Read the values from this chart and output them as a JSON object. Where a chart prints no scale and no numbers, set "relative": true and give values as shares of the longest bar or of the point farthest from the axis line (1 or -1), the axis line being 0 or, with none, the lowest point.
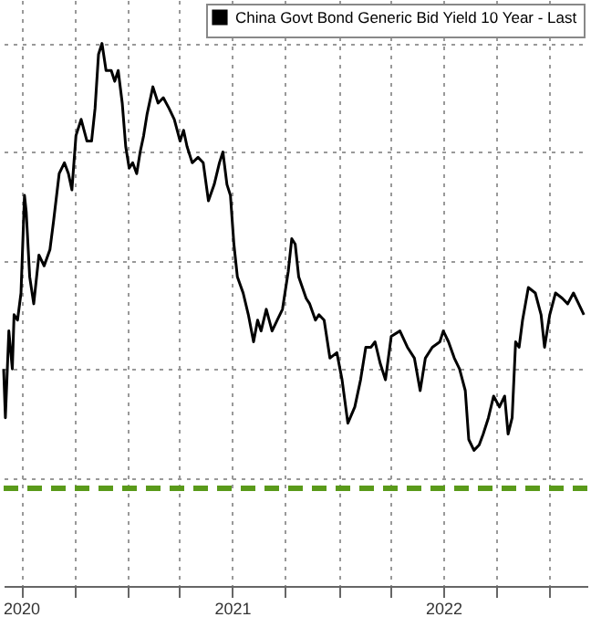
{
  "chart_data": {
    "type": "line",
    "relative": true,
    "xlim": [
      "2020-06-01",
      "2023-03-07"
    ],
    "xticks": [
      {
        "value": "2020-07-01",
        "label": "2020"
      },
      {
        "value": "2020-10-01",
        "label": null
      },
      {
        "value": "2021-01-01",
        "label": null
      },
      {
        "value": "2021-04-01",
        "label": null
      },
      {
        "value": "2021-07-01",
        "label": "2021"
      },
      {
        "value": "2021-10-01",
        "label": null
      },
      {
        "value": "2022-01-01",
        "label": null
      },
      {
        "value": "2022-04-01",
        "label": null
      },
      {
        "value": "2022-07-01",
        "label": "2022"
      },
      {
        "value": "2022-10-01",
        "label": null
      },
      {
        "value": "2023-01-01",
        "label": null
      }
    ],
    "x": [
      "2020-06-01",
      "2020-06-04",
      "2020-06-10",
      "2020-06-16",
      "2020-06-19",
      "2020-06-25",
      "2020-07-01",
      "2020-07-07",
      "2020-07-10",
      "2020-07-16",
      "2020-07-23",
      "2020-08-01",
      "2020-08-10",
      "2020-08-20",
      "2020-08-26",
      "2020-09-05",
      "2020-09-14",
      "2020-09-21",
      "2020-09-27",
      "2020-10-04",
      "2020-10-13",
      "2020-10-23",
      "2020-10-31",
      "2020-11-06",
      "2020-11-12",
      "2020-11-18",
      "2020-11-25",
      "2020-12-04",
      "2020-12-10",
      "2020-12-16",
      "2020-12-23",
      "2020-12-29",
      "2021-01-04",
      "2021-01-10",
      "2021-01-17",
      "2021-01-23",
      "2021-01-29",
      "2021-02-04",
      "2021-02-14",
      "2021-02-23",
      "2021-03-04",
      "2021-03-14",
      "2021-03-23",
      "2021-04-02",
      "2021-04-08",
      "2021-04-14",
      "2021-04-23",
      "2021-05-03",
      "2021-05-12",
      "2021-05-21",
      "2021-05-31",
      "2021-06-09",
      "2021-06-15",
      "2021-06-22",
      "2021-06-28",
      "2021-07-04",
      "2021-07-10",
      "2021-07-20",
      "2021-07-29",
      "2021-08-07",
      "2021-08-14",
      "2021-08-20",
      "2021-08-29",
      "2021-09-08",
      "2021-09-17",
      "2021-09-26",
      "2021-10-06",
      "2021-10-12",
      "2021-10-18",
      "2021-10-24",
      "2021-11-06",
      "2021-11-12",
      "2021-11-22",
      "2021-11-28",
      "2021-12-07",
      "2021-12-17",
      "2021-12-29",
      "2022-01-07",
      "2022-01-17",
      "2022-01-29",
      "2022-02-08",
      "2022-02-17",
      "2022-02-26",
      "2022-03-05",
      "2022-03-14",
      "2022-03-23",
      "2022-04-02",
      "2022-04-17",
      "2022-04-30",
      "2022-05-12",
      "2022-05-22",
      "2022-05-31",
      "2022-06-12",
      "2022-06-25",
      "2022-07-01",
      "2022-07-10",
      "2022-07-20",
      "2022-07-29",
      "2022-08-08",
      "2022-08-14",
      "2022-08-23",
      "2022-09-01",
      "2022-09-08",
      "2022-09-17",
      "2022-09-26",
      "2022-10-06",
      "2022-10-15",
      "2022-10-21",
      "2022-10-28",
      "2022-11-03",
      "2022-11-09",
      "2022-11-15",
      "2022-11-25",
      "2022-12-07",
      "2022-12-17",
      "2022-12-23",
      "2023-01-01",
      "2023-01-11",
      "2023-01-23",
      "2023-02-01",
      "2023-02-11",
      "2023-02-20",
      "2023-03-01"
    ],
    "series": [
      {
        "name": "China Govt Bond Generic Bid Yield 10 Year - Last",
        "color": "#000000",
        "values": [
          0.4,
          0.31,
          0.47,
          0.4,
          0.5,
          0.49,
          0.54,
          0.72,
          0.69,
          0.57,
          0.52,
          0.61,
          0.59,
          0.62,
          0.67,
          0.76,
          0.78,
          0.76,
          0.73,
          0.83,
          0.86,
          0.82,
          0.82,
          0.88,
          0.98,
          1.0,
          0.95,
          0.95,
          0.93,
          0.95,
          0.89,
          0.81,
          0.77,
          0.78,
          0.76,
          0.8,
          0.83,
          0.87,
          0.92,
          0.89,
          0.9,
          0.88,
          0.86,
          0.82,
          0.84,
          0.81,
          0.78,
          0.79,
          0.78,
          0.71,
          0.74,
          0.78,
          0.8,
          0.74,
          0.72,
          0.63,
          0.57,
          0.54,
          0.5,
          0.45,
          0.49,
          0.47,
          0.51,
          0.47,
          0.49,
          0.51,
          0.58,
          0.64,
          0.63,
          0.57,
          0.53,
          0.52,
          0.49,
          0.5,
          0.49,
          0.42,
          0.43,
          0.38,
          0.3,
          0.33,
          0.38,
          0.44,
          0.44,
          0.45,
          0.41,
          0.38,
          0.46,
          0.47,
          0.44,
          0.42,
          0.36,
          0.42,
          0.44,
          0.45,
          0.47,
          0.45,
          0.42,
          0.4,
          0.36,
          0.27,
          0.25,
          0.26,
          0.28,
          0.31,
          0.35,
          0.33,
          0.35,
          0.28,
          0.31,
          0.45,
          0.44,
          0.49,
          0.55,
          0.54,
          0.5,
          0.44,
          0.5,
          0.54,
          0.53,
          0.52,
          0.54,
          0.52,
          0.5
        ]
      }
    ],
    "ref_lines": [
      {
        "axis": "y",
        "value": 0.18,
        "color": "#5a9a1a",
        "line_style": "dashed"
      }
    ],
    "grid": true,
    "legend": "top right",
    "tick_labels": "x"
  }
}
